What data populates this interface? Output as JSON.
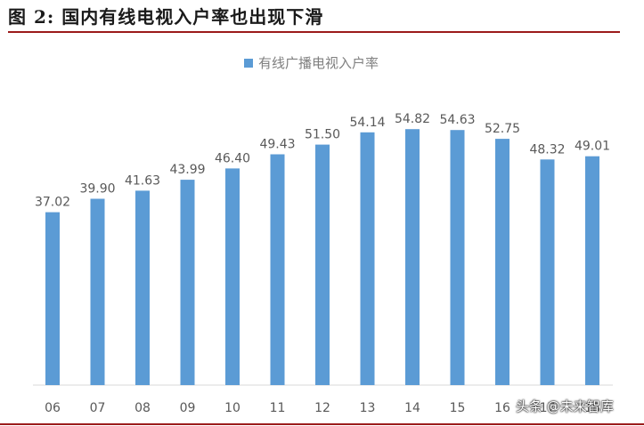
{
  "figure": {
    "title": "图 2:  国内有线电视入户率也出现下滑",
    "watermark": "头条 @未来智库"
  },
  "colors": {
    "bar": "#5b9bd5",
    "rule": "#9b1b1b"
  },
  "chart_data": {
    "type": "bar",
    "categories": [
      "06",
      "07",
      "08",
      "09",
      "10",
      "11",
      "12",
      "13",
      "14",
      "15",
      "16",
      "17",
      "18"
    ],
    "series": [
      {
        "name": "有线广播电视入户率",
        "values": [
          37.02,
          39.9,
          41.63,
          43.99,
          46.4,
          49.43,
          51.5,
          54.14,
          54.82,
          54.63,
          52.75,
          48.32,
          49.01
        ]
      }
    ],
    "value_labels": [
      "37.02",
      "39.90",
      "41.63",
      "43.99",
      "46.40",
      "49.43",
      "51.50",
      "54.14",
      "54.82",
      "54.63",
      "52.75",
      "48.32",
      "49.01"
    ],
    "ylim": [
      0,
      60
    ],
    "legend_position": "top-center",
    "grid": false,
    "title": "",
    "xlabel": "",
    "ylabel": ""
  }
}
